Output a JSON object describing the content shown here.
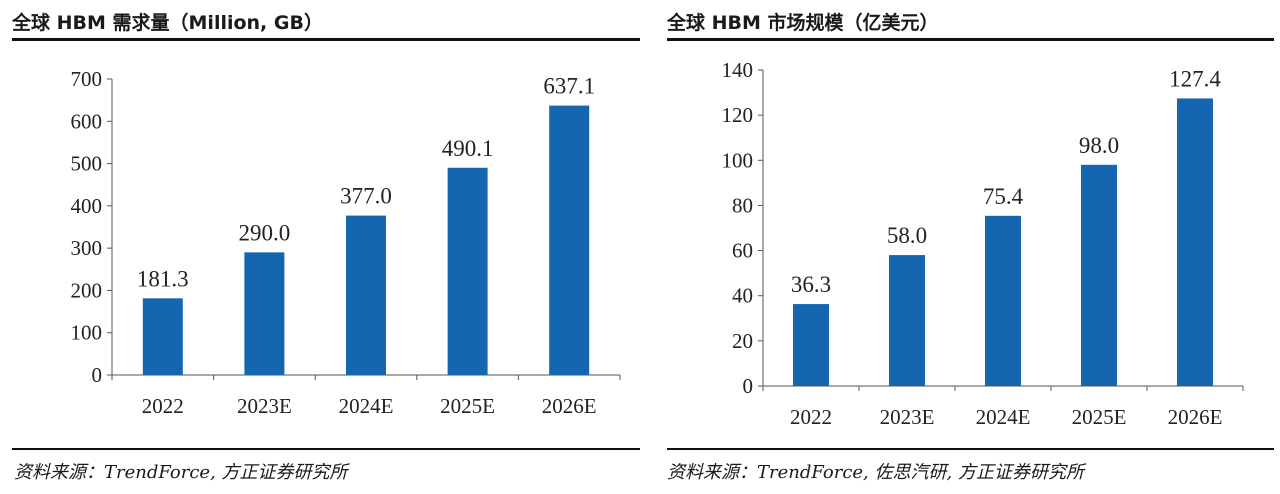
{
  "colors": {
    "bar": "#1466b0",
    "axis": "#555555",
    "rule": "#111111"
  },
  "chart_data": [
    {
      "type": "bar",
      "title": "全球 HBM 需求量（Million, GB）",
      "source": "资料来源：TrendForce, 方正证券研究所",
      "categories": [
        "2022",
        "2023E",
        "2024E",
        "2025E",
        "2026E"
      ],
      "values": [
        181.3,
        290.0,
        377.0,
        490.1,
        637.1
      ],
      "value_labels": [
        "181.3",
        "290.0",
        "377.0",
        "490.1",
        "637.1"
      ],
      "yticks": [
        "0",
        "100",
        "200",
        "300",
        "400",
        "500",
        "600",
        "700"
      ],
      "ylim": [
        0,
        700
      ],
      "grid": false,
      "xlabel": "",
      "ylabel": ""
    },
    {
      "type": "bar",
      "title": "全球 HBM 市场规模（亿美元）",
      "source": "资料来源：TrendForce, 佐思汽研, 方正证券研究所",
      "categories": [
        "2022",
        "2023E",
        "2024E",
        "2025E",
        "2026E"
      ],
      "values": [
        36.3,
        58.0,
        75.4,
        98.0,
        127.4
      ],
      "value_labels": [
        "36.3",
        "58.0",
        "75.4",
        "98.0",
        "127.4"
      ],
      "yticks": [
        "0",
        "20",
        "40",
        "60",
        "80",
        "100",
        "120",
        "140"
      ],
      "ylim": [
        0,
        140
      ],
      "grid": false,
      "xlabel": "",
      "ylabel": ""
    }
  ]
}
